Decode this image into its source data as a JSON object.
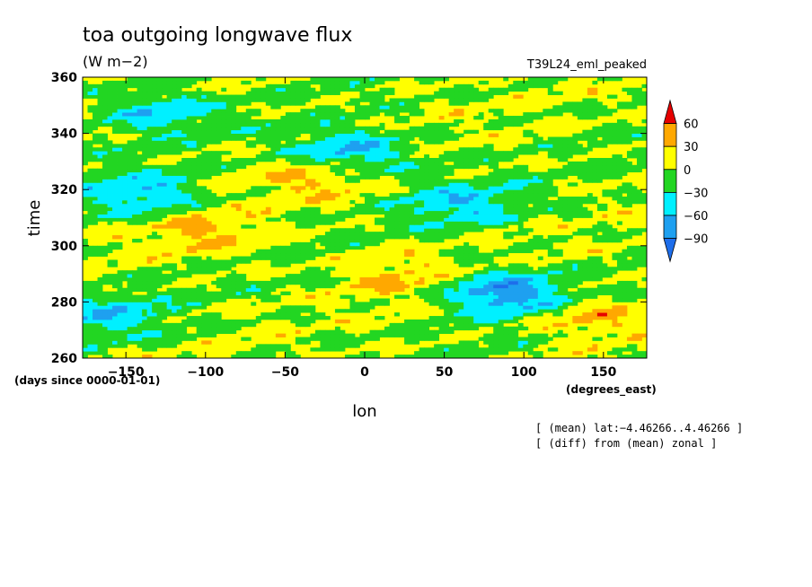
{
  "chart_data": {
    "type": "heatmap",
    "title": "toa outgoing longwave flux",
    "units": "(W m−2)",
    "run_label": "T39L24_eml_peaked",
    "xlabel": "lon",
    "ylabel": "time",
    "x_units": "(degrees_east)",
    "y_units": "(days since 0000-01-01)",
    "xlim": [
      -177.19,
      177.19
    ],
    "ylim": [
      260,
      360
    ],
    "xticks": [
      -150,
      -100,
      -50,
      0,
      50,
      100,
      150
    ],
    "yticks": [
      260,
      280,
      300,
      320,
      340,
      360
    ],
    "xtick_labels": [
      "−150",
      "−100",
      "−50",
      "0",
      "50",
      "100",
      "150"
    ],
    "ytick_labels": [
      "260",
      "280",
      "300",
      "320",
      "340",
      "360"
    ],
    "colorbar": {
      "levels": [
        -90,
        -60,
        -30,
        0,
        30,
        60
      ],
      "labels": [
        "−90",
        "−60",
        "−30",
        "0",
        "30",
        "60"
      ],
      "colors": [
        "#1e6eeb",
        "#1ea0f0",
        "#00f0ff",
        "#22d622",
        "#ffff00",
        "#ffa800",
        "#e60000"
      ],
      "extend": "both"
    },
    "annotations": [
      "[ (mean) lat:−4.46266..4.46266 ]",
      "[ (diff) from (mean) zonal ]"
    ],
    "anomaly_features": [
      {
        "lon": -30,
        "time": 325,
        "value": 40
      },
      {
        "lon": -100,
        "time": 305,
        "value": 35
      },
      {
        "lon": 140,
        "time": 275,
        "value": 40
      },
      {
        "lon": 20,
        "time": 290,
        "value": 30
      },
      {
        "lon": 90,
        "time": 283,
        "value": -90
      },
      {
        "lon": -10,
        "time": 333,
        "value": -70
      },
      {
        "lon": -140,
        "time": 318,
        "value": -60
      },
      {
        "lon": 60,
        "time": 315,
        "value": -50
      },
      {
        "lon": -130,
        "time": 348,
        "value": -50
      },
      {
        "lon": -160,
        "time": 275,
        "value": -45
      }
    ]
  }
}
